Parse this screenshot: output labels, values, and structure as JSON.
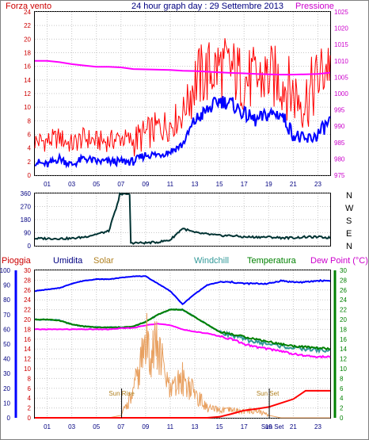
{
  "header": {
    "left_label": "Forza vento",
    "title": "24 hour graph day : 29 Settembre 2013",
    "right_label": "Pressione"
  },
  "colors": {
    "wind_gust": "#ff0000",
    "wind_speed": "#0000ff",
    "pressure": "#ff00ff",
    "direction": "#003333",
    "pioggia": "#ff0000",
    "umidita": "#000080",
    "solar": "#e8a060",
    "windchill": "#339999",
    "temperatura": "#008000",
    "dew_point": "#ff00ff",
    "axis_text": "#000080",
    "pressure_text": "#cc00cc"
  },
  "chart_data": [
    {
      "id": "wind-pressure",
      "type": "line",
      "x": [
        "00:00",
        "01:00",
        "02:00",
        "03:00",
        "04:00",
        "05:00",
        "06:00",
        "07:00",
        "08:00",
        "09:00",
        "10:00",
        "11:00",
        "12:00",
        "13:00",
        "14:00",
        "15:00",
        "16:00",
        "17:00",
        "18:00",
        "19:00",
        "20:00",
        "21:00",
        "22:00",
        "23:00",
        "24:00"
      ],
      "xticks": [
        "01",
        "03",
        "05",
        "07",
        "09",
        "11",
        "13",
        "15",
        "17",
        "19",
        "21",
        "23"
      ],
      "ylabel_left": "Forza vento",
      "ylabel_right": "Pressione",
      "ylim_left": [
        0,
        24
      ],
      "yticks_left": [
        0,
        2,
        4,
        6,
        8,
        10,
        12,
        14,
        16,
        18,
        20,
        22,
        24
      ],
      "ylim_right": [
        975,
        1025
      ],
      "yticks_right": [
        975,
        980,
        985,
        990,
        995,
        1000,
        1005,
        1010,
        1015,
        1020,
        1025
      ],
      "series": [
        {
          "name": "Forza vento",
          "axis": "left",
          "values": [
            5,
            5,
            5.5,
            4.5,
            5.5,
            5,
            5,
            5.5,
            5,
            6,
            7,
            7.5,
            9,
            14,
            15,
            16,
            15.5,
            14,
            14,
            14.5,
            14,
            12,
            11,
            14,
            17
          ]
        },
        {
          "name": "",
          "axis": "left",
          "values": [
            2,
            1.5,
            2.5,
            1.5,
            2.5,
            2,
            2,
            2,
            2,
            3,
            3,
            3.5,
            4.5,
            8,
            9.5,
            11,
            10.5,
            9,
            8,
            9,
            9,
            6,
            5,
            6,
            8
          ]
        },
        {
          "name": "Pressione",
          "axis": "right",
          "values": [
            1010,
            1010,
            1009.6,
            1009,
            1008.6,
            1008.2,
            1008.2,
            1008,
            1007.5,
            1007.4,
            1007.3,
            1007.2,
            1007,
            1006.9,
            1006.7,
            1006.5,
            1006.3,
            1006.2,
            1006,
            1005.9,
            1005.8,
            1005.8,
            1005.9,
            1006.0,
            1006.4
          ]
        }
      ]
    },
    {
      "id": "wind-direction",
      "type": "line",
      "x": [
        "00:00",
        "01:00",
        "02:00",
        "03:00",
        "04:00",
        "05:00",
        "06:00",
        "07:00",
        "08:00",
        "09:00",
        "10:00",
        "11:00",
        "12:00",
        "13:00",
        "14:00",
        "15:00",
        "16:00",
        "17:00",
        "18:00",
        "19:00",
        "20:00",
        "21:00",
        "22:00",
        "23:00",
        "24:00"
      ],
      "ylim": [
        0,
        360
      ],
      "yticks": [
        0,
        90,
        180,
        270,
        360
      ],
      "compass_labels": [
        "N",
        "W",
        "S",
        "E",
        "N"
      ],
      "series": [
        {
          "name": "",
          "values": [
            50,
            50,
            50,
            50,
            60,
            80,
            100,
            360,
            20,
            20,
            25,
            40,
            120,
            90,
            80,
            70,
            70,
            60,
            60,
            60,
            55,
            55,
            60,
            60,
            55
          ]
        }
      ]
    },
    {
      "id": "weather",
      "type": "line",
      "x": [
        "00:00",
        "01:00",
        "02:00",
        "03:00",
        "04:00",
        "05:00",
        "06:00",
        "07:00",
        "08:00",
        "09:00",
        "10:00",
        "11:00",
        "12:00",
        "13:00",
        "14:00",
        "15:00",
        "16:00",
        "17:00",
        "18:00",
        "19:00",
        "20:00",
        "21:00",
        "22:00",
        "23:00",
        "24:00"
      ],
      "xticks": [
        "01",
        "03",
        "05",
        "07",
        "09",
        "11",
        "13",
        "15",
        "17",
        "19",
        "21",
        "23"
      ],
      "x_annotations": [
        "Sun Rise",
        "Sun Set"
      ],
      "axis_labels": [
        "Pioggia",
        "Umidita",
        "Solar",
        "Windchill",
        "Temperatura",
        "Dew Point (°C)"
      ],
      "ylim_umidita": [
        0,
        100
      ],
      "yticks_umidita": [
        0,
        10,
        20,
        30,
        40,
        50,
        60,
        70,
        80,
        90,
        100
      ],
      "ylim_pioggia": [
        0,
        30
      ],
      "yticks_pioggia": [
        0,
        2,
        4,
        6,
        8,
        10,
        12,
        14,
        16,
        18,
        20,
        22,
        24,
        26,
        28,
        30
      ],
      "ylim_temp": [
        0,
        30
      ],
      "yticks_temp": [
        0,
        2,
        4,
        6,
        8,
        10,
        12,
        14,
        16,
        18,
        20,
        22,
        24,
        26,
        28,
        30
      ],
      "series": [
        {
          "name": "Umidita",
          "axis": "umidita",
          "values": [
            86,
            87,
            88,
            91,
            93,
            94,
            94,
            95,
            96,
            96,
            91,
            86,
            77,
            84,
            90,
            92,
            92,
            91,
            91,
            91,
            93,
            92,
            92,
            93,
            93
          ]
        },
        {
          "name": "Temperatura",
          "axis": "temp",
          "values": [
            20,
            20,
            19.8,
            19,
            18.6,
            18.4,
            18.4,
            18.4,
            18.6,
            19.5,
            21,
            22,
            22,
            20.5,
            19,
            17.5,
            17,
            16.5,
            16,
            15.5,
            15,
            14.6,
            14.4,
            14.2,
            14
          ]
        },
        {
          "name": "Windchill",
          "axis": "temp",
          "values": [
            20,
            20,
            19.8,
            19,
            18.6,
            18.4,
            18.4,
            18.4,
            18.6,
            19.5,
            21,
            22,
            22,
            20.5,
            19,
            17.5,
            16.8,
            16,
            15.4,
            15,
            14.6,
            14.2,
            14,
            13.8,
            13.6
          ]
        },
        {
          "name": "Dew Point",
          "axis": "temp",
          "values": [
            18,
            18,
            18,
            18,
            18,
            18,
            18,
            18.2,
            18.3,
            18.8,
            19.2,
            18.8,
            18,
            17.5,
            17.2,
            16.6,
            16,
            15,
            14.4,
            14,
            13.6,
            13,
            12.6,
            12.4,
            12.4
          ]
        },
        {
          "name": "Solar",
          "axis": "pioggia",
          "values": [
            0,
            0,
            0,
            0,
            0,
            0,
            0,
            0.5,
            5,
            15,
            14,
            5,
            8,
            5,
            2,
            1.5,
            1.5,
            1.3,
            1.5,
            0.5,
            0,
            0,
            0,
            0,
            0
          ]
        },
        {
          "name": "Pioggia",
          "axis": "pioggia",
          "values": [
            0,
            0,
            0,
            0,
            0,
            0,
            0,
            0,
            0,
            0,
            0,
            0,
            0,
            0,
            0,
            0.2,
            0.8,
            1.5,
            1.8,
            2.2,
            3,
            3.8,
            5.5,
            5.5,
            5.5
          ]
        }
      ]
    }
  ]
}
